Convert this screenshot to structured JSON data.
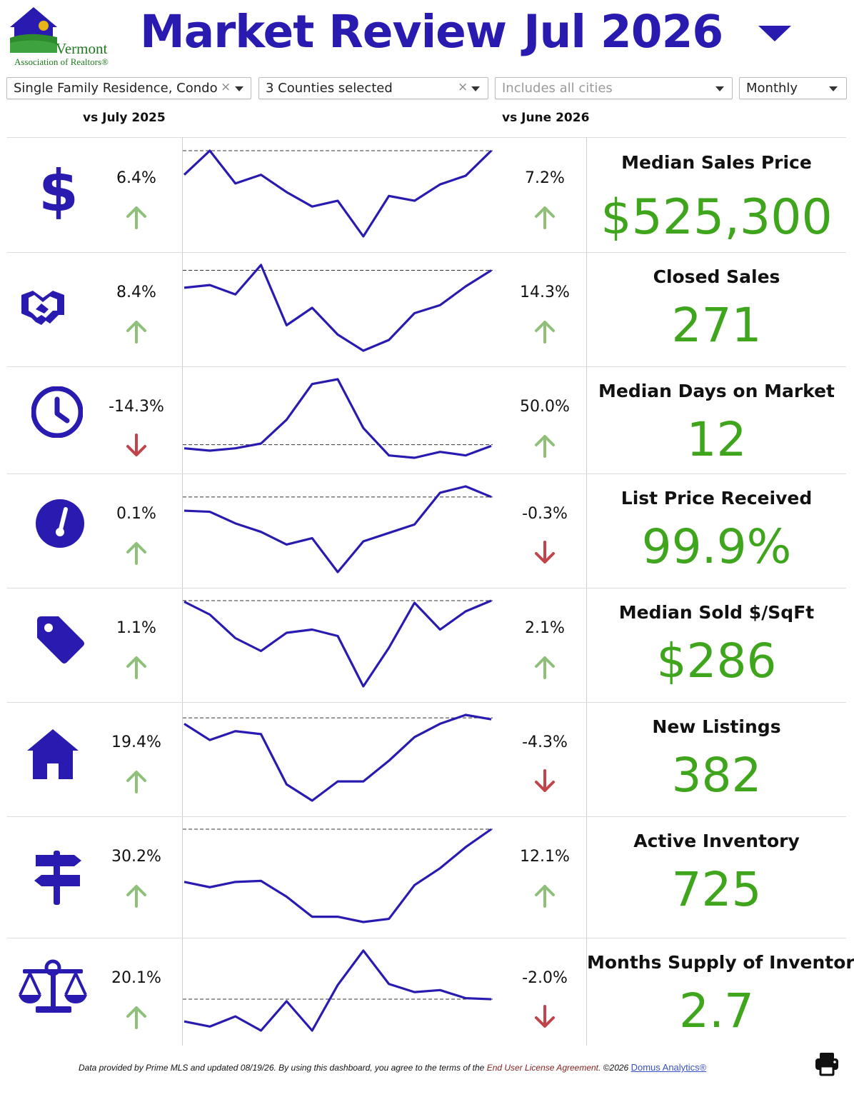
{
  "header": {
    "logo_line1": "Vermont",
    "logo_line2": "Association of Realtors®",
    "title": "Market Review",
    "period": "Jul 2026"
  },
  "filters": {
    "property_type": "Single Family Residence, Condo",
    "counties": "3 Counties selected",
    "cities_placeholder": "Includes all cities",
    "frequency": "Monthly",
    "clear_symbol": "×"
  },
  "columns": {
    "yoy": "vs July 2025",
    "mom": "vs June 2026"
  },
  "colors": {
    "title": "#2a1bb0",
    "value": "#3fa51c",
    "up": "#8fc07a",
    "down": "#c0444a",
    "line": "#2a1bb0"
  },
  "metrics": [
    {
      "icon": "dollar-icon",
      "label": "Median Sales Price",
      "value": "$525,300",
      "yoy": "6.4%",
      "yoy_dir": "up",
      "mom": "7.2%",
      "mom_dir": "up",
      "spark": [
        72,
        97,
        63,
        72,
        54,
        39,
        45,
        8,
        50,
        45,
        62,
        71,
        97
      ],
      "ref": 97
    },
    {
      "icon": "handshake-icon",
      "label": "Closed Sales",
      "value": "271",
      "yoy": "8.4%",
      "yoy_dir": "up",
      "mom": "14.3%",
      "mom_dir": "up",
      "spark": [
        83,
        85,
        78,
        100,
        55,
        68,
        48,
        36,
        44,
        64,
        70,
        84,
        96
      ],
      "ref": 96
    },
    {
      "icon": "clock-icon",
      "label": "Median Days on Market",
      "value": "12",
      "yoy": "-14.3%",
      "yoy_dir": "down",
      "mom": "50.0%",
      "mom_dir": "up",
      "spark": [
        8,
        6,
        8,
        12,
        32,
        62,
        66,
        25,
        2,
        0,
        5,
        2,
        10
      ],
      "ref": 11
    },
    {
      "icon": "gauge-icon",
      "label": "List Price Received",
      "value": "99.9%",
      "yoy": "0.1%",
      "yoy_dir": "up",
      "mom": "-0.3%",
      "mom_dir": "down",
      "spark": [
        85,
        84,
        73,
        65,
        53,
        59,
        27,
        56,
        64,
        72,
        102,
        108,
        98
      ],
      "ref": 98
    },
    {
      "icon": "tag-icon",
      "label": "Median Sold $/SqFt",
      "value": "$286",
      "yoy": "1.1%",
      "yoy_dir": "up",
      "mom": "2.1%",
      "mom_dir": "up",
      "spark": [
        86,
        74,
        52,
        40,
        57,
        60,
        54,
        7,
        43,
        85,
        60,
        77,
        87
      ],
      "ref": 87
    },
    {
      "icon": "house-icon",
      "label": "New Listings",
      "value": "382",
      "yoy": "19.4%",
      "yoy_dir": "up",
      "mom": "-4.3%",
      "mom_dir": "down",
      "spark": [
        68,
        57,
        63,
        61,
        27,
        16,
        29,
        29,
        43,
        59,
        68,
        74,
        71
      ],
      "ref": 72
    },
    {
      "icon": "signpost-icon",
      "label": "Active Inventory",
      "value": "725",
      "yoy": "30.2%",
      "yoy_dir": "up",
      "mom": "12.1%",
      "mom_dir": "up",
      "spark": [
        60,
        55,
        60,
        61,
        46,
        27,
        27,
        22,
        25,
        57,
        73,
        93,
        110
      ],
      "ref": 110
    },
    {
      "icon": "scale-icon",
      "label": "Months Supply of Inventory",
      "value": "2.7",
      "yoy": "20.1%",
      "yoy_dir": "up",
      "mom": "-2.0%",
      "mom_dir": "down",
      "spark": [
        42,
        37,
        47,
        33,
        62,
        33,
        78,
        112,
        79,
        71,
        73,
        65,
        64
      ],
      "ref": 64
    }
  ],
  "footer": {
    "text": "Data provided by Prime MLS and updated 08/19/26.  By using this dashboard, you agree to the terms of the",
    "eula": "End User License Agreement",
    "copyright": ".  ©2026",
    "brand": "Domus Analytics®"
  }
}
